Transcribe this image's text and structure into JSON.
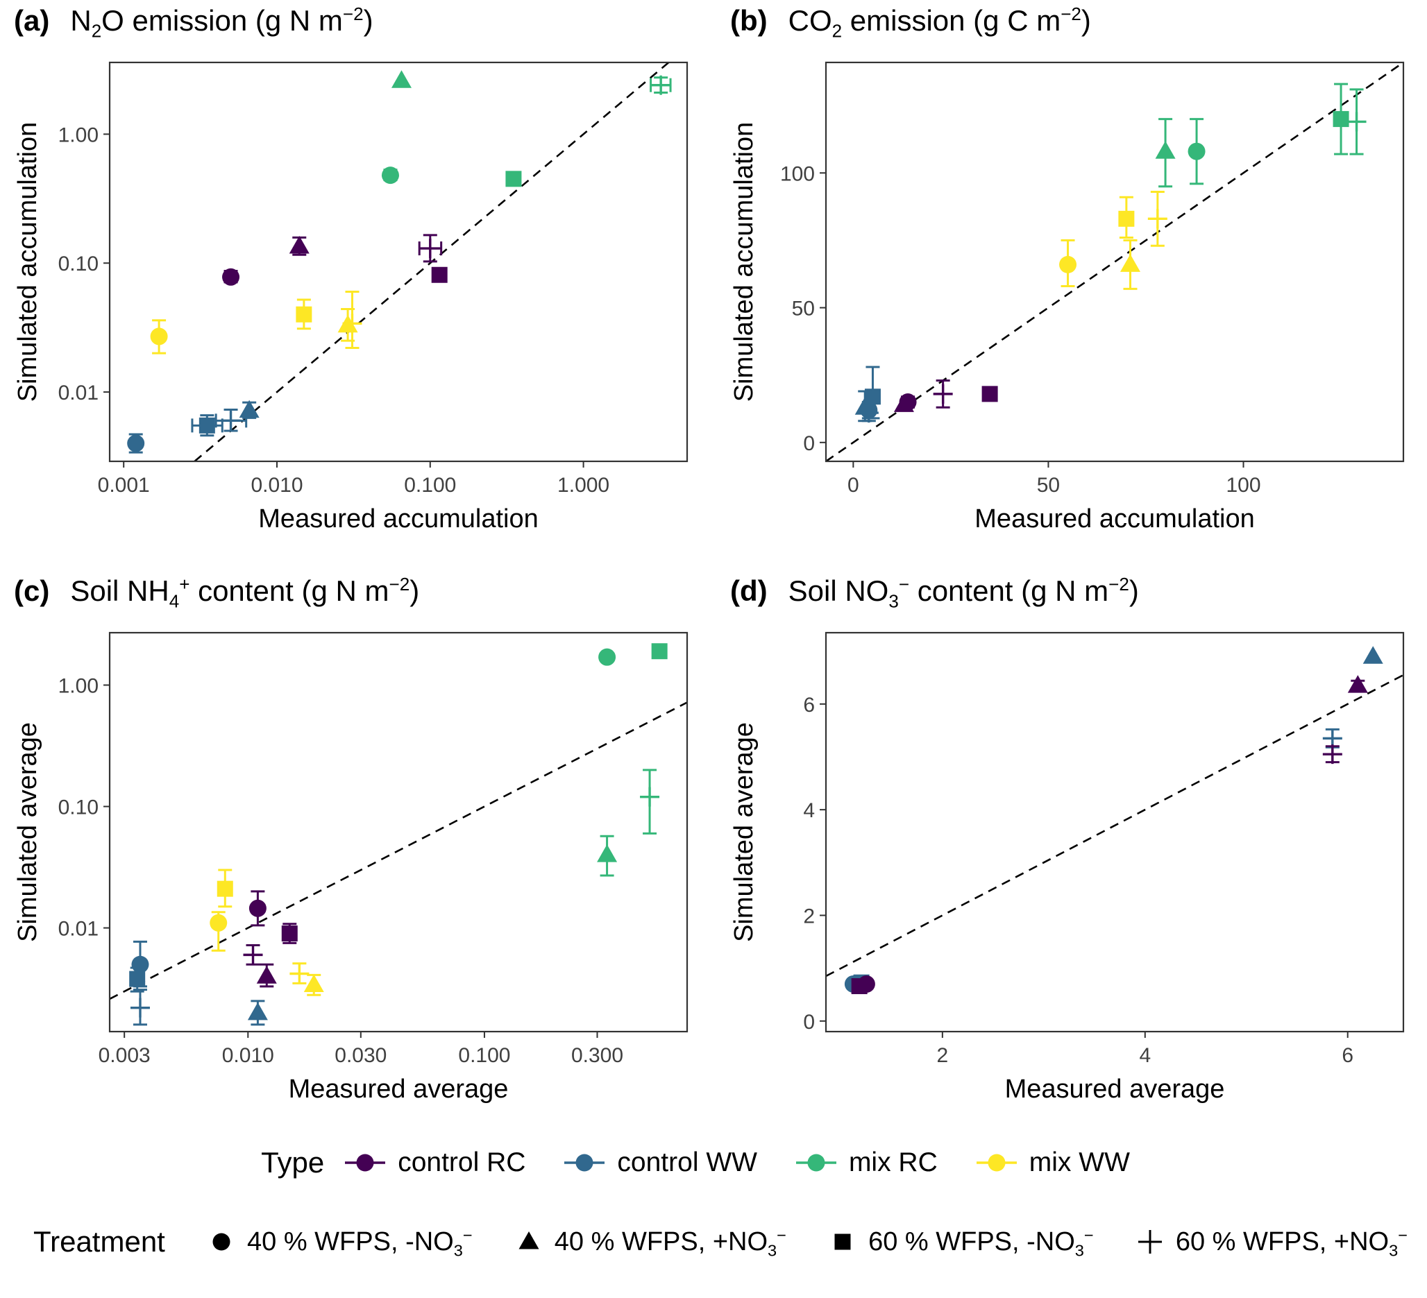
{
  "type_colors": {
    "control RC": "#440154",
    "control WW": "#31688E",
    "mix RC": "#35B779",
    "mix WW": "#FDE725"
  },
  "type_legend": {
    "label": "Type",
    "items": [
      {
        "name": "control RC",
        "color": "#440154"
      },
      {
        "name": "control WW",
        "color": "#31688E"
      },
      {
        "name": "mix RC",
        "color": "#35B779"
      },
      {
        "name": "mix WW",
        "color": "#FDE725"
      }
    ]
  },
  "treatment_legend": {
    "label": "Treatment",
    "items": [
      {
        "shape": "circle",
        "label": "40 % WFPS, -NO_{3}^{−}"
      },
      {
        "shape": "triangle",
        "label": "40 % WFPS, +NO_{3}^{−}"
      },
      {
        "shape": "square",
        "label": "60 % WFPS, -NO_{3}^{−}"
      },
      {
        "shape": "plus",
        "label": "60 % WFPS, +NO_{3}^{−}"
      }
    ]
  },
  "chart_data": [
    {
      "panel_label": "(a)",
      "title": "N_{2}O emission (g N m^{−2})",
      "type": "scatter",
      "xlabel": "Measured accumulation",
      "ylabel": "Simulated accumulation",
      "xscale": "log",
      "yscale": "log",
      "xlim": [
        0.00081,
        4.75
      ],
      "ylim": [
        0.0029,
        3.6
      ],
      "xticks": [
        0.001,
        0.01,
        0.1,
        1
      ],
      "xtick_labels": [
        "0.001",
        "0.010",
        "0.100",
        "1.000"
      ],
      "yticks": [
        0.01,
        0.1,
        1
      ],
      "ytick_labels": [
        "0.01",
        "0.10",
        "1.00"
      ],
      "identity_line": true,
      "points": [
        {
          "type": "control WW",
          "shape": "circle",
          "x": 0.0012,
          "y": 0.004,
          "ylo": 0.0034,
          "yhi": 0.0047
        },
        {
          "type": "control WW",
          "shape": "square",
          "x": 0.0035,
          "y": 0.0055,
          "ylo": 0.0046,
          "yhi": 0.0066,
          "xlo": 0.0028,
          "xhi": 0.0044
        },
        {
          "type": "control WW",
          "shape": "plus",
          "x": 0.005,
          "y": 0.006,
          "ylo": 0.005,
          "yhi": 0.0073,
          "xlo": 0.004,
          "xhi": 0.0063
        },
        {
          "type": "control WW",
          "shape": "triangle",
          "x": 0.0066,
          "y": 0.0072,
          "ylo": 0.0063,
          "yhi": 0.0083
        },
        {
          "type": "control RC",
          "shape": "circle",
          "x": 0.005,
          "y": 0.078,
          "ylo": 0.071,
          "yhi": 0.087
        },
        {
          "type": "control RC",
          "shape": "triangle",
          "x": 0.014,
          "y": 0.135,
          "ylo": 0.116,
          "yhi": 0.158
        },
        {
          "type": "control RC",
          "shape": "plus",
          "x": 0.1,
          "y": 0.13,
          "ylo": 0.103,
          "yhi": 0.165,
          "xlo": 0.085,
          "xhi": 0.118
        },
        {
          "type": "control RC",
          "shape": "square",
          "x": 0.115,
          "y": 0.081
        },
        {
          "type": "mix WW",
          "shape": "circle",
          "x": 0.0017,
          "y": 0.027,
          "ylo": 0.02,
          "yhi": 0.036
        },
        {
          "type": "mix WW",
          "shape": "square",
          "x": 0.015,
          "y": 0.04,
          "ylo": 0.031,
          "yhi": 0.052
        },
        {
          "type": "mix WW",
          "shape": "triangle",
          "x": 0.029,
          "y": 0.033,
          "ylo": 0.025,
          "yhi": 0.044
        },
        {
          "type": "mix WW",
          "shape": "plus",
          "x": 0.031,
          "y": 0.034,
          "ylo": 0.022,
          "yhi": 0.06
        },
        {
          "type": "mix RC",
          "shape": "circle",
          "x": 0.055,
          "y": 0.48,
          "ylo": 0.44,
          "yhi": 0.53
        },
        {
          "type": "mix RC",
          "shape": "triangle",
          "x": 0.065,
          "y": 2.6
        },
        {
          "type": "mix RC",
          "shape": "square",
          "x": 0.35,
          "y": 0.45
        },
        {
          "type": "mix RC",
          "shape": "plus",
          "x": 3.2,
          "y": 2.4,
          "ylo": 2.1,
          "yhi": 2.75,
          "xlo": 2.75,
          "xhi": 3.7
        }
      ]
    },
    {
      "panel_label": "(b)",
      "title": "CO_{2} emission (g C m^{−2})",
      "type": "scatter",
      "xlabel": "Measured accumulation",
      "ylabel": "Simulated accumulation",
      "xscale": "linear",
      "yscale": "linear",
      "xlim": [
        -7,
        141
      ],
      "ylim": [
        -7,
        141
      ],
      "xticks": [
        0,
        50,
        100
      ],
      "xtick_labels": [
        "0",
        "50",
        "100"
      ],
      "yticks": [
        0,
        50,
        100
      ],
      "ytick_labels": [
        "0",
        "50",
        "100"
      ],
      "identity_line": true,
      "points": [
        {
          "type": "control WW",
          "shape": "triangle",
          "x": 3,
          "y": 13,
          "ylo": 8,
          "yhi": 19
        },
        {
          "type": "control WW",
          "shape": "circle",
          "x": 4,
          "y": 12,
          "ylo": 9,
          "yhi": 15
        },
        {
          "type": "control WW",
          "shape": "square",
          "x": 5,
          "y": 17,
          "ylo": 9,
          "yhi": 28
        },
        {
          "type": "control WW",
          "shape": "plus",
          "x": 4,
          "y": 11,
          "ylo": 8,
          "yhi": 14
        },
        {
          "type": "control RC",
          "shape": "triangle",
          "x": 13,
          "y": 14
        },
        {
          "type": "control RC",
          "shape": "circle",
          "x": 14,
          "y": 15,
          "ylo": 13,
          "yhi": 17
        },
        {
          "type": "control RC",
          "shape": "plus",
          "x": 23,
          "y": 18,
          "ylo": 13,
          "yhi": 23
        },
        {
          "type": "control RC",
          "shape": "square",
          "x": 35,
          "y": 18,
          "ylo": 16.5,
          "yhi": 19.5
        },
        {
          "type": "mix WW",
          "shape": "circle",
          "x": 55,
          "y": 66,
          "ylo": 58,
          "yhi": 75
        },
        {
          "type": "mix WW",
          "shape": "triangle",
          "x": 71,
          "y": 66,
          "ylo": 57,
          "yhi": 75
        },
        {
          "type": "mix WW",
          "shape": "square",
          "x": 70,
          "y": 83,
          "ylo": 76,
          "yhi": 91
        },
        {
          "type": "mix WW",
          "shape": "plus",
          "x": 78,
          "y": 83,
          "ylo": 73,
          "yhi": 93
        },
        {
          "type": "mix RC",
          "shape": "triangle",
          "x": 80,
          "y": 108,
          "ylo": 95,
          "yhi": 120
        },
        {
          "type": "mix RC",
          "shape": "circle",
          "x": 88,
          "y": 108,
          "ylo": 96,
          "yhi": 120
        },
        {
          "type": "mix RC",
          "shape": "square",
          "x": 125,
          "y": 120,
          "ylo": 107,
          "yhi": 133
        },
        {
          "type": "mix RC",
          "shape": "plus",
          "x": 129,
          "y": 119,
          "ylo": 107,
          "yhi": 131
        }
      ]
    },
    {
      "panel_label": "(c)",
      "title": "Soil NH_{4}^{+} content (g N m^{−2})",
      "type": "scatter",
      "xlabel": "Measured average",
      "ylabel": "Simulated average",
      "xscale": "log",
      "yscale": "log",
      "xlim": [
        0.0026,
        0.72
      ],
      "ylim": [
        0.0014,
        2.7
      ],
      "xticks": [
        0.003,
        0.01,
        0.03,
        0.1,
        0.3
      ],
      "xtick_labels": [
        "0.003",
        "0.010",
        "0.030",
        "0.100",
        "0.300"
      ],
      "yticks": [
        0.01,
        0.1,
        1
      ],
      "ytick_labels": [
        "0.01",
        "0.10",
        "1.00"
      ],
      "identity_line": true,
      "points": [
        {
          "type": "control WW",
          "shape": "circle",
          "x": 0.0035,
          "y": 0.005,
          "ylo": 0.0033,
          "yhi": 0.0077
        },
        {
          "type": "control WW",
          "shape": "square",
          "x": 0.0034,
          "y": 0.0038,
          "ylo": 0.003,
          "yhi": 0.0047
        },
        {
          "type": "control WW",
          "shape": "plus",
          "x": 0.0035,
          "y": 0.0022,
          "ylo": 0.0016,
          "yhi": 0.0031
        },
        {
          "type": "control WW",
          "shape": "triangle",
          "x": 0.011,
          "y": 0.002,
          "ylo": 0.0016,
          "yhi": 0.0025
        },
        {
          "type": "control RC",
          "shape": "circle",
          "x": 0.011,
          "y": 0.0145,
          "ylo": 0.0105,
          "yhi": 0.02
        },
        {
          "type": "control RC",
          "shape": "plus",
          "x": 0.0105,
          "y": 0.006,
          "ylo": 0.005,
          "yhi": 0.0072
        },
        {
          "type": "control RC",
          "shape": "triangle",
          "x": 0.012,
          "y": 0.004,
          "ylo": 0.0033,
          "yhi": 0.005
        },
        {
          "type": "control RC",
          "shape": "square",
          "x": 0.015,
          "y": 0.009,
          "ylo": 0.0075,
          "yhi": 0.0108
        },
        {
          "type": "mix WW",
          "shape": "square",
          "x": 0.008,
          "y": 0.021,
          "ylo": 0.015,
          "yhi": 0.03
        },
        {
          "type": "mix WW",
          "shape": "circle",
          "x": 0.0075,
          "y": 0.011,
          "ylo": 0.0065,
          "yhi": 0.0135
        },
        {
          "type": "mix WW",
          "shape": "plus",
          "x": 0.0165,
          "y": 0.0042,
          "ylo": 0.0035,
          "yhi": 0.0051
        },
        {
          "type": "mix WW",
          "shape": "triangle",
          "x": 0.019,
          "y": 0.0034,
          "ylo": 0.0028,
          "yhi": 0.0041
        },
        {
          "type": "mix RC",
          "shape": "circle",
          "x": 0.33,
          "y": 1.7
        },
        {
          "type": "mix RC",
          "shape": "square",
          "x": 0.55,
          "y": 1.9
        },
        {
          "type": "mix RC",
          "shape": "triangle",
          "x": 0.33,
          "y": 0.04,
          "ylo": 0.027,
          "yhi": 0.057
        },
        {
          "type": "mix RC",
          "shape": "plus",
          "x": 0.5,
          "y": 0.12,
          "ylo": 0.06,
          "yhi": 0.2
        }
      ]
    },
    {
      "panel_label": "(d)",
      "title": "Soil NO_{3}^{−} content (g N m^{−2})",
      "type": "scatter",
      "xlabel": "Measured average",
      "ylabel": "Simulated average",
      "xscale": "linear",
      "yscale": "linear",
      "xlim": [
        0.85,
        6.55
      ],
      "ylim": [
        -0.2,
        7.35
      ],
      "xticks": [
        2,
        4,
        6
      ],
      "xtick_labels": [
        "2",
        "4",
        "6"
      ],
      "yticks": [
        0,
        2,
        4,
        6
      ],
      "ytick_labels": [
        "0",
        "2",
        "4",
        "6"
      ],
      "identity_line": true,
      "points": [
        {
          "type": "control WW",
          "shape": "circle",
          "x": 1.12,
          "y": 0.7
        },
        {
          "type": "control WW",
          "shape": "square",
          "x": 1.2,
          "y": 0.73
        },
        {
          "type": "control RC",
          "shape": "square",
          "x": 1.18,
          "y": 0.66
        },
        {
          "type": "control RC",
          "shape": "circle",
          "x": 1.25,
          "y": 0.7
        },
        {
          "type": "control WW",
          "shape": "plus",
          "x": 5.85,
          "y": 5.35,
          "ylo": 5.18,
          "yhi": 5.52
        },
        {
          "type": "control RC",
          "shape": "plus",
          "x": 5.85,
          "y": 5.05,
          "ylo": 4.9,
          "yhi": 5.2
        },
        {
          "type": "control RC",
          "shape": "triangle",
          "x": 6.1,
          "y": 6.35,
          "ylo": 6.26,
          "yhi": 6.44
        },
        {
          "type": "control WW",
          "shape": "triangle",
          "x": 6.25,
          "y": 6.9
        }
      ]
    }
  ]
}
